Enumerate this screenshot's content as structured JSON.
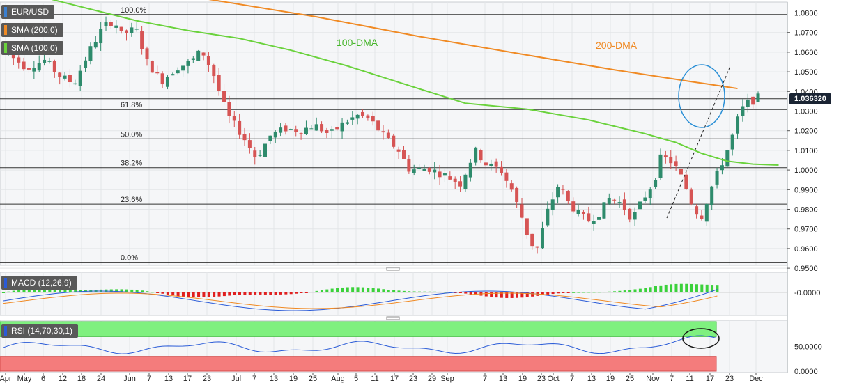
{
  "chart_data": [
    {
      "type": "candlestick",
      "symbol": "EUR/USD",
      "current_price": "1.036320",
      "y_ticks": [
        "1.0800",
        "1.0700",
        "1.0600",
        "1.0500",
        "1.0400",
        "1.0300",
        "1.0200",
        "1.0100",
        "1.0000",
        "0.9900",
        "0.9800",
        "0.9700",
        "0.9600",
        "0.9500"
      ],
      "ylim": [
        0.948,
        1.0865
      ],
      "x_ticks": [
        "Apr",
        "May",
        "6",
        "12",
        "18",
        "24",
        "Jun",
        "7",
        "13",
        "17",
        "23",
        "Jul",
        "7",
        "13",
        "19",
        "25",
        "Aug",
        "5",
        "11",
        "17",
        "23",
        "29",
        "Sep",
        "7",
        "13",
        "19",
        "23",
        "Oct",
        "7",
        "13",
        "19",
        "25",
        "Nov",
        "7",
        "11",
        "17",
        "23",
        "Dec"
      ],
      "indicators": [
        {
          "name": "SMA (200,0)",
          "label": "200-DMA",
          "color": "#f08a24",
          "values": [
            [
              -21,
              1.108
            ],
            [
              5,
              1.1005
            ],
            [
              20,
              1.0945
            ],
            [
              40,
              1.0865
            ],
            [
              60,
              1.078
            ],
            [
              80,
              1.068
            ],
            [
              100,
              1.059
            ],
            [
              118,
              1.051
            ],
            [
              133,
              1.045
            ],
            [
              142,
              1.0415
            ]
          ]
        },
        {
          "name": "SMA (100,0)",
          "label": "100-DMA",
          "color": "#6ad23c",
          "values": [
            [
              0,
              1.0925
            ],
            [
              12,
              1.0845
            ],
            [
              25,
              1.076
            ],
            [
              35,
              1.071
            ],
            [
              45,
              1.067
            ],
            [
              55,
              1.061
            ],
            [
              66,
              1.053
            ],
            [
              78,
              1.043
            ],
            [
              89,
              1.034
            ],
            [
              101,
              1.031
            ],
            [
              113,
              1.0255
            ],
            [
              124,
              1.0185
            ],
            [
              130,
              1.014
            ],
            [
              135,
              1.0085
            ],
            [
              140,
              1.0045
            ],
            [
              145,
              1.003
            ],
            [
              150,
              1.0025
            ]
          ]
        }
      ],
      "fibonacci": [
        {
          "label": "100.0%",
          "value": 1.0792
        },
        {
          "label": "61.8%",
          "value": 1.0308
        },
        {
          "label": "50.0%",
          "value": 1.0159
        },
        {
          "label": "38.2%",
          "value": 1.0012
        },
        {
          "label": "23.6%",
          "value": 0.9826
        },
        {
          "label": "0.0%",
          "value": 0.953
        }
      ],
      "current_price_line": 1.0363
    },
    {
      "type": "histogram+line",
      "name": "MACD (12,26,9)",
      "y_ticks": [
        "-0.0000"
      ]
    },
    {
      "type": "line",
      "name": "RSI (14,70,30,1)",
      "y_ticks": [
        "50.0000",
        "0.0000"
      ],
      "overbought": 70,
      "oversold": 30
    }
  ]
}
